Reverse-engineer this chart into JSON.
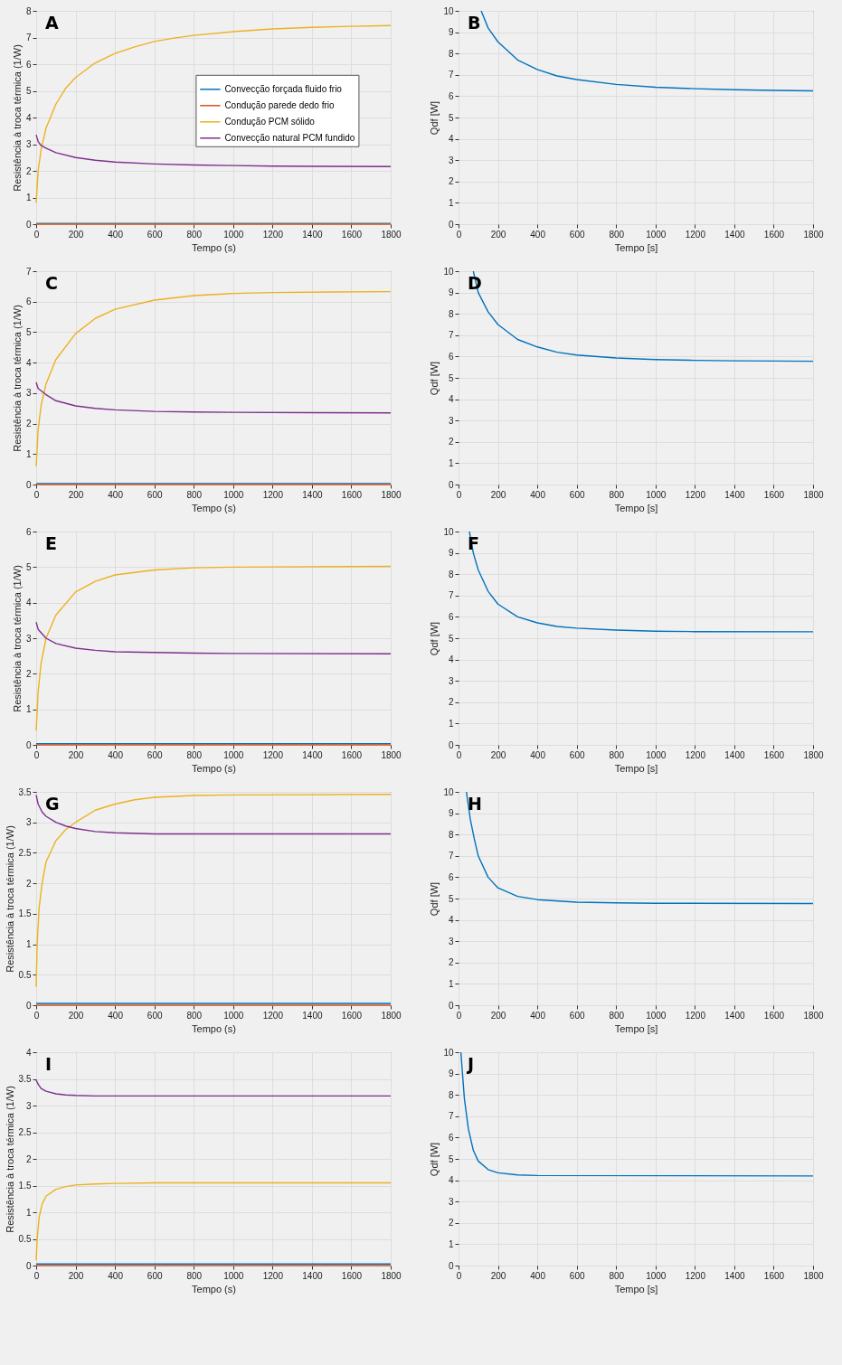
{
  "chart_data": [
    {
      "type": "line",
      "title": "A",
      "xlabel": "Tempo (s)",
      "ylabel": "Resistência à troca térmica (1/W)",
      "xlim": [
        0,
        1800
      ],
      "xticks": [
        0,
        200,
        400,
        600,
        800,
        1000,
        1200,
        1400,
        1600,
        1800
      ],
      "ylim": [
        0,
        8
      ],
      "yticks": [
        0,
        1,
        2,
        3,
        4,
        5,
        6,
        7,
        8
      ],
      "grid": true,
      "legend": "right",
      "series": [
        {
          "name": "Convecção forçada fluido frio",
          "color": "#0072bd",
          "x": [
            0,
            1800
          ],
          "values": [
            0.03,
            0.03
          ]
        },
        {
          "name": "Condução parede dedo frio",
          "color": "#d95319",
          "x": [
            0,
            1800
          ],
          "values": [
            0,
            0
          ]
        },
        {
          "name": "Condução PCM sólido",
          "color": "#edb120",
          "x": [
            0,
            10,
            25,
            50,
            100,
            150,
            200,
            300,
            400,
            500,
            600,
            700,
            800,
            1000,
            1200,
            1400,
            1600,
            1800
          ],
          "values": [
            0.8,
            2.0,
            2.8,
            3.6,
            4.5,
            5.1,
            5.5,
            6.05,
            6.4,
            6.65,
            6.85,
            6.98,
            7.08,
            7.22,
            7.32,
            7.38,
            7.42,
            7.45
          ]
        },
        {
          "name": "Convecção natural PCM fundido",
          "color": "#7e2f8e",
          "x": [
            0,
            10,
            25,
            50,
            100,
            200,
            300,
            400,
            600,
            800,
            1000,
            1200,
            1400,
            1800
          ],
          "values": [
            3.35,
            3.1,
            2.95,
            2.85,
            2.68,
            2.5,
            2.4,
            2.33,
            2.26,
            2.22,
            2.2,
            2.18,
            2.17,
            2.16
          ]
        }
      ]
    },
    {
      "type": "line",
      "title": "B",
      "xlabel": "Tempo [s]",
      "ylabel": "Qdf [W]",
      "xlim": [
        0,
        1800
      ],
      "xticks": [
        0,
        200,
        400,
        600,
        800,
        1000,
        1200,
        1400,
        1600,
        1800
      ],
      "ylim": [
        0,
        10
      ],
      "yticks": [
        0,
        1,
        2,
        3,
        4,
        5,
        6,
        7,
        8,
        9,
        10
      ],
      "grid": true,
      "series": [
        {
          "color": "#0072bd",
          "x": [
            115,
            150,
            200,
            300,
            400,
            500,
            600,
            800,
            1000,
            1200,
            1400,
            1600,
            1800
          ],
          "values": [
            10,
            9.2,
            8.55,
            7.7,
            7.25,
            6.95,
            6.78,
            6.55,
            6.42,
            6.35,
            6.3,
            6.27,
            6.25
          ]
        }
      ]
    },
    {
      "type": "line",
      "title": "C",
      "xlabel": "Tempo (s)",
      "ylabel": "Resistência à troca térmica (1/W)",
      "xlim": [
        0,
        1800
      ],
      "xticks": [
        0,
        200,
        400,
        600,
        800,
        1000,
        1200,
        1400,
        1600,
        1800
      ],
      "ylim": [
        0,
        7
      ],
      "yticks": [
        0,
        1,
        2,
        3,
        4,
        5,
        6,
        7
      ],
      "grid": true,
      "legend": "right",
      "series": [
        {
          "name": "Convecção forçada fluido frio",
          "color": "#0072bd",
          "x": [
            0,
            1800
          ],
          "values": [
            0.03,
            0.03
          ]
        },
        {
          "name": "Condução parede dedo frio",
          "color": "#d95319",
          "x": [
            0,
            1800
          ],
          "values": [
            0,
            0
          ]
        },
        {
          "name": "Condução PCM sólido",
          "color": "#edb120",
          "x": [
            0,
            10,
            25,
            50,
            100,
            200,
            300,
            400,
            600,
            800,
            1000,
            1200,
            1500,
            1800
          ],
          "values": [
            0.6,
            1.8,
            2.6,
            3.3,
            4.1,
            4.95,
            5.45,
            5.75,
            6.05,
            6.2,
            6.27,
            6.3,
            6.32,
            6.33
          ]
        },
        {
          "name": "Convecção natural PCM fundido",
          "color": "#7e2f8e",
          "x": [
            0,
            10,
            50,
            100,
            200,
            300,
            400,
            600,
            800,
            1000,
            1400,
            1800
          ],
          "values": [
            3.35,
            3.15,
            2.95,
            2.75,
            2.58,
            2.5,
            2.45,
            2.4,
            2.38,
            2.37,
            2.36,
            2.35
          ]
        }
      ]
    },
    {
      "type": "line",
      "title": "D",
      "xlabel": "Tempo [s]",
      "ylabel": "Qdf [W]",
      "xlim": [
        0,
        1800
      ],
      "xticks": [
        0,
        200,
        400,
        600,
        800,
        1000,
        1200,
        1400,
        1600,
        1800
      ],
      "ylim": [
        0,
        10
      ],
      "yticks": [
        0,
        1,
        2,
        3,
        4,
        5,
        6,
        7,
        8,
        9,
        10
      ],
      "grid": true,
      "series": [
        {
          "color": "#0072bd",
          "x": [
            75,
            100,
            150,
            200,
            300,
            400,
            500,
            600,
            800,
            1000,
            1200,
            1400,
            1800
          ],
          "values": [
            10,
            9.0,
            8.1,
            7.5,
            6.8,
            6.45,
            6.2,
            6.07,
            5.93,
            5.86,
            5.82,
            5.8,
            5.78
          ]
        }
      ]
    },
    {
      "type": "line",
      "title": "E",
      "xlabel": "Tempo (s)",
      "ylabel": "Resistência à troca térmica (1/W)",
      "xlim": [
        0,
        1800
      ],
      "xticks": [
        0,
        200,
        400,
        600,
        800,
        1000,
        1200,
        1400,
        1600,
        1800
      ],
      "ylim": [
        0,
        6
      ],
      "yticks": [
        0,
        1,
        2,
        3,
        4,
        5,
        6
      ],
      "grid": true,
      "legend": "right",
      "series": [
        {
          "name": "Convecção forçada fluido frio",
          "color": "#0072bd",
          "x": [
            0,
            1800
          ],
          "values": [
            0.03,
            0.03
          ]
        },
        {
          "name": "Condução parede dedo frio",
          "color": "#d95319",
          "x": [
            0,
            1800
          ],
          "values": [
            0,
            0
          ]
        },
        {
          "name": "Condução PCM sólido",
          "color": "#edb120",
          "x": [
            0,
            10,
            25,
            50,
            100,
            200,
            300,
            400,
            600,
            800,
            1000,
            1800
          ],
          "values": [
            0.4,
            1.5,
            2.3,
            3.0,
            3.65,
            4.3,
            4.6,
            4.78,
            4.92,
            4.98,
            5.0,
            5.02
          ]
        },
        {
          "name": "Convecção natural PCM fundido",
          "color": "#7e2f8e",
          "x": [
            0,
            10,
            50,
            100,
            200,
            300,
            400,
            600,
            800,
            1000,
            1800
          ],
          "values": [
            3.45,
            3.25,
            3.0,
            2.85,
            2.72,
            2.66,
            2.62,
            2.6,
            2.58,
            2.57,
            2.56
          ]
        }
      ]
    },
    {
      "type": "line",
      "title": "F",
      "xlabel": "Tempo [s]",
      "ylabel": "Qdf [W]",
      "xlim": [
        0,
        1800
      ],
      "xticks": [
        0,
        200,
        400,
        600,
        800,
        1000,
        1200,
        1400,
        1600,
        1800
      ],
      "ylim": [
        0,
        10
      ],
      "yticks": [
        0,
        1,
        2,
        3,
        4,
        5,
        6,
        7,
        8,
        9,
        10
      ],
      "grid": true,
      "series": [
        {
          "color": "#0072bd",
          "x": [
            55,
            75,
            100,
            150,
            200,
            300,
            400,
            500,
            600,
            800,
            1000,
            1200,
            1800
          ],
          "values": [
            10,
            9.0,
            8.2,
            7.2,
            6.6,
            6.0,
            5.72,
            5.55,
            5.47,
            5.38,
            5.33,
            5.31,
            5.3
          ]
        }
      ]
    },
    {
      "type": "line",
      "title": "G",
      "xlabel": "Tempo (s)",
      "ylabel": "Resistência à troca térmica (1/W)",
      "xlim": [
        0,
        1800
      ],
      "xticks": [
        0,
        200,
        400,
        600,
        800,
        1000,
        1200,
        1400,
        1600,
        1800
      ],
      "ylim": [
        0,
        3.5
      ],
      "yticks": [
        0,
        0.5,
        1,
        1.5,
        2,
        2.5,
        3,
        3.5
      ],
      "grid": true,
      "legend": "right",
      "series": [
        {
          "name": "Convecção forçada fluido frio",
          "color": "#0072bd",
          "x": [
            0,
            1800
          ],
          "values": [
            0.03,
            0.03
          ]
        },
        {
          "name": "Condução parede dedo frio",
          "color": "#d95319",
          "x": [
            0,
            1800
          ],
          "values": [
            0,
            0
          ]
        },
        {
          "name": "Condução PCM sólido",
          "color": "#edb120",
          "x": [
            0,
            5,
            15,
            30,
            50,
            100,
            150,
            200,
            300,
            400,
            500,
            600,
            800,
            1000,
            1800
          ],
          "values": [
            0.3,
            1.0,
            1.6,
            2.0,
            2.35,
            2.7,
            2.88,
            3.0,
            3.2,
            3.3,
            3.37,
            3.41,
            3.44,
            3.45,
            3.46
          ]
        },
        {
          "name": "Convecção natural PCM fundido",
          "color": "#7e2f8e",
          "x": [
            0,
            10,
            30,
            50,
            100,
            150,
            200,
            300,
            400,
            600,
            800,
            1800
          ],
          "values": [
            3.45,
            3.3,
            3.17,
            3.1,
            3.0,
            2.94,
            2.9,
            2.85,
            2.83,
            2.81,
            2.81,
            2.81
          ]
        }
      ]
    },
    {
      "type": "line",
      "title": "H",
      "xlabel": "Tempo [s]",
      "ylabel": "Qdf [W]",
      "xlim": [
        0,
        1800
      ],
      "xticks": [
        0,
        200,
        400,
        600,
        800,
        1000,
        1200,
        1400,
        1600,
        1800
      ],
      "ylim": [
        0,
        10
      ],
      "yticks": [
        0,
        1,
        2,
        3,
        4,
        5,
        6,
        7,
        8,
        9,
        10
      ],
      "grid": true,
      "series": [
        {
          "color": "#0072bd",
          "x": [
            40,
            60,
            80,
            100,
            150,
            200,
            300,
            400,
            600,
            800,
            1000,
            1800
          ],
          "values": [
            10,
            8.7,
            7.8,
            7.0,
            6.0,
            5.5,
            5.1,
            4.95,
            4.83,
            4.8,
            4.78,
            4.77
          ]
        }
      ]
    },
    {
      "type": "line",
      "title": "I",
      "xlabel": "Tempo (s)",
      "ylabel": "Resistência à troca térmica (1/W)",
      "xlim": [
        0,
        1800
      ],
      "xticks": [
        0,
        200,
        400,
        600,
        800,
        1000,
        1200,
        1400,
        1600,
        1800
      ],
      "ylim": [
        0,
        4
      ],
      "yticks": [
        0,
        0.5,
        1,
        1.5,
        2,
        2.5,
        3,
        3.5,
        4
      ],
      "grid": true,
      "legend": "right",
      "series": [
        {
          "name": "Convecção forçada fluido frio",
          "color": "#0072bd",
          "x": [
            0,
            1800
          ],
          "values": [
            0.03,
            0.03
          ]
        },
        {
          "name": "Condução parede dedo frio",
          "color": "#d95319",
          "x": [
            0,
            1800
          ],
          "values": [
            0,
            0
          ]
        },
        {
          "name": "Condução PCM sólido",
          "color": "#edb120",
          "x": [
            0,
            5,
            15,
            30,
            50,
            100,
            150,
            200,
            300,
            400,
            600,
            1800
          ],
          "values": [
            0.1,
            0.5,
            0.9,
            1.15,
            1.3,
            1.43,
            1.48,
            1.51,
            1.53,
            1.54,
            1.55,
            1.55
          ]
        },
        {
          "name": "Convecção natural PCM fundido",
          "color": "#7e2f8e",
          "x": [
            0,
            10,
            25,
            50,
            100,
            150,
            200,
            300,
            1800
          ],
          "values": [
            3.48,
            3.4,
            3.32,
            3.27,
            3.22,
            3.2,
            3.19,
            3.18,
            3.18
          ]
        }
      ]
    },
    {
      "type": "line",
      "title": "J",
      "xlabel": "Tempo [s]",
      "ylabel": "Qdf [W]",
      "xlim": [
        0,
        1800
      ],
      "xticks": [
        0,
        200,
        400,
        600,
        800,
        1000,
        1200,
        1400,
        1600,
        1800
      ],
      "ylim": [
        0,
        10
      ],
      "yticks": [
        0,
        1,
        2,
        3,
        4,
        5,
        6,
        7,
        8,
        9,
        10
      ],
      "grid": true,
      "series": [
        {
          "color": "#0072bd",
          "x": [
            12,
            20,
            30,
            50,
            75,
            100,
            150,
            200,
            300,
            400,
            1800
          ],
          "values": [
            10,
            9.0,
            7.8,
            6.4,
            5.4,
            4.9,
            4.5,
            4.35,
            4.25,
            4.22,
            4.2
          ]
        }
      ]
    }
  ]
}
